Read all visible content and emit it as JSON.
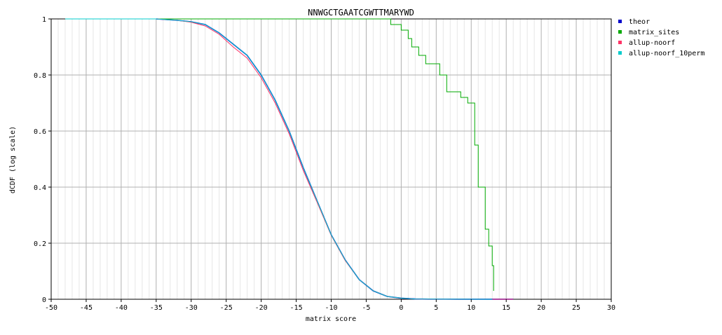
{
  "chart_data": {
    "type": "line",
    "title": "NNWGCTGAATCGWTTMARYWD",
    "xlabel": "matrix score",
    "ylabel": "dCDF (log scale)",
    "xlim": [
      -50,
      30
    ],
    "ylim": [
      0,
      1
    ],
    "x_ticks": [
      -50,
      -45,
      -40,
      -35,
      -30,
      -25,
      -20,
      -15,
      -10,
      -5,
      0,
      5,
      10,
      15,
      20,
      25,
      30
    ],
    "y_ticks": [
      0,
      0.2,
      0.4,
      0.6,
      0.8,
      1
    ],
    "x_tick_labels": [
      "-50",
      "-45",
      "-40",
      "-35",
      "-30",
      "-25",
      "-20",
      "-15",
      "-10",
      "-5",
      "0",
      "5",
      "10",
      "15",
      "20",
      "25",
      "30"
    ],
    "y_tick_labels": [
      "0",
      "0.2",
      "0.4",
      "0.6",
      "0.8",
      "1"
    ],
    "grid": true,
    "legend_position": "right",
    "series": [
      {
        "name": "theor",
        "color": "#0000cc",
        "x": [
          -35,
          -32,
          -30,
          -28,
          -26,
          -24,
          -22,
          -20,
          -18,
          -16,
          -14,
          -12,
          -10,
          -8,
          -6,
          -4,
          -2,
          0,
          2,
          4,
          8,
          16
        ],
        "y": [
          1,
          0.995,
          0.99,
          0.98,
          0.95,
          0.91,
          0.87,
          0.8,
          0.71,
          0.6,
          0.47,
          0.35,
          0.23,
          0.14,
          0.07,
          0.03,
          0.01,
          0.004,
          0.001,
          0.0005,
          0.0002,
          0.0001
        ]
      },
      {
        "name": "matrix_sites",
        "color": "#00aa00",
        "x": [
          -48,
          -2,
          -1.5,
          0,
          1,
          1.5,
          2.5,
          3.5,
          5.5,
          6.5,
          8.5,
          9.5,
          10.5,
          11,
          12,
          12.5,
          13,
          13.2
        ],
        "y": [
          1,
          1,
          0.98,
          0.96,
          0.93,
          0.9,
          0.87,
          0.84,
          0.8,
          0.74,
          0.72,
          0.7,
          0.55,
          0.4,
          0.25,
          0.19,
          0.12,
          0.03
        ]
      },
      {
        "name": "allup-noorf",
        "color": "#ff3366",
        "x": [
          -35,
          -32,
          -30,
          -28,
          -26,
          -24,
          -22,
          -20,
          -18,
          -16,
          -14,
          -12,
          -10,
          -8,
          -6,
          -4,
          -2,
          0,
          2,
          4,
          8,
          16
        ],
        "y": [
          1,
          0.995,
          0.988,
          0.975,
          0.945,
          0.9,
          0.86,
          0.79,
          0.7,
          0.59,
          0.46,
          0.345,
          0.228,
          0.138,
          0.07,
          0.03,
          0.01,
          0.004,
          0.001,
          0.0005,
          0.0002,
          0.0001
        ]
      },
      {
        "name": "allup-noorf_10perm",
        "color": "#00cccc",
        "x": [
          -48,
          -40,
          -35,
          -32,
          -30,
          -28,
          -26,
          -24,
          -22,
          -20,
          -18,
          -16,
          -14,
          -12,
          -10,
          -8,
          -6,
          -4,
          -2,
          0,
          2,
          4,
          8,
          13
        ],
        "y": [
          1,
          1,
          1,
          0.995,
          0.99,
          0.98,
          0.95,
          0.91,
          0.87,
          0.8,
          0.71,
          0.6,
          0.47,
          0.35,
          0.23,
          0.14,
          0.07,
          0.03,
          0.01,
          0.004,
          0.001,
          0.0005,
          0.0002,
          0.0001
        ]
      }
    ]
  }
}
